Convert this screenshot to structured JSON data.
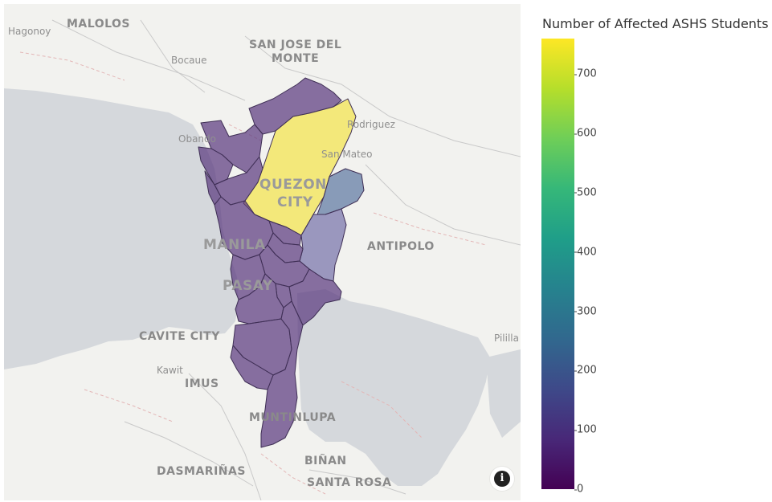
{
  "map": {
    "labels": {
      "hagonoy": "Hagonoy",
      "malolos": "MALOLOS",
      "san_jose_del_monte_1": "SAN JOSE DEL",
      "san_jose_del_monte_2": "MONTE",
      "bocaue": "Bocaue",
      "obando": "Obando",
      "rodriguez": "Rodriguez",
      "san_mateo": "San Mateo",
      "quezon_city_1": "QUEZON",
      "quezon_city_2": "CITY",
      "manila": "MANILA",
      "antipolo": "ANTIPOLO",
      "pasay": "PASAY",
      "cavite_city": "CAVITE CITY",
      "pililla": "Pililla",
      "kawit": "Kawit",
      "imus": "IMUS",
      "muntinlupa": "MUNTINLUPA",
      "binan": "BIÑAN",
      "dasmarinas": "DASMARIÑAS",
      "santa_rosa": "SANTA ROSA"
    },
    "fill_colors": {
      "low": "#5c3a80",
      "mid": "#4f6b99",
      "mid_low": "#6460a0",
      "high": "#f3e66a"
    },
    "info_icon": "info-icon"
  },
  "legend": {
    "title": "Number of Affected ASHS Students",
    "ticks": [
      "700",
      "600",
      "500",
      "400",
      "300",
      "200",
      "100",
      "0"
    ],
    "range": [
      0,
      760
    ],
    "colorscale": "viridis"
  }
}
